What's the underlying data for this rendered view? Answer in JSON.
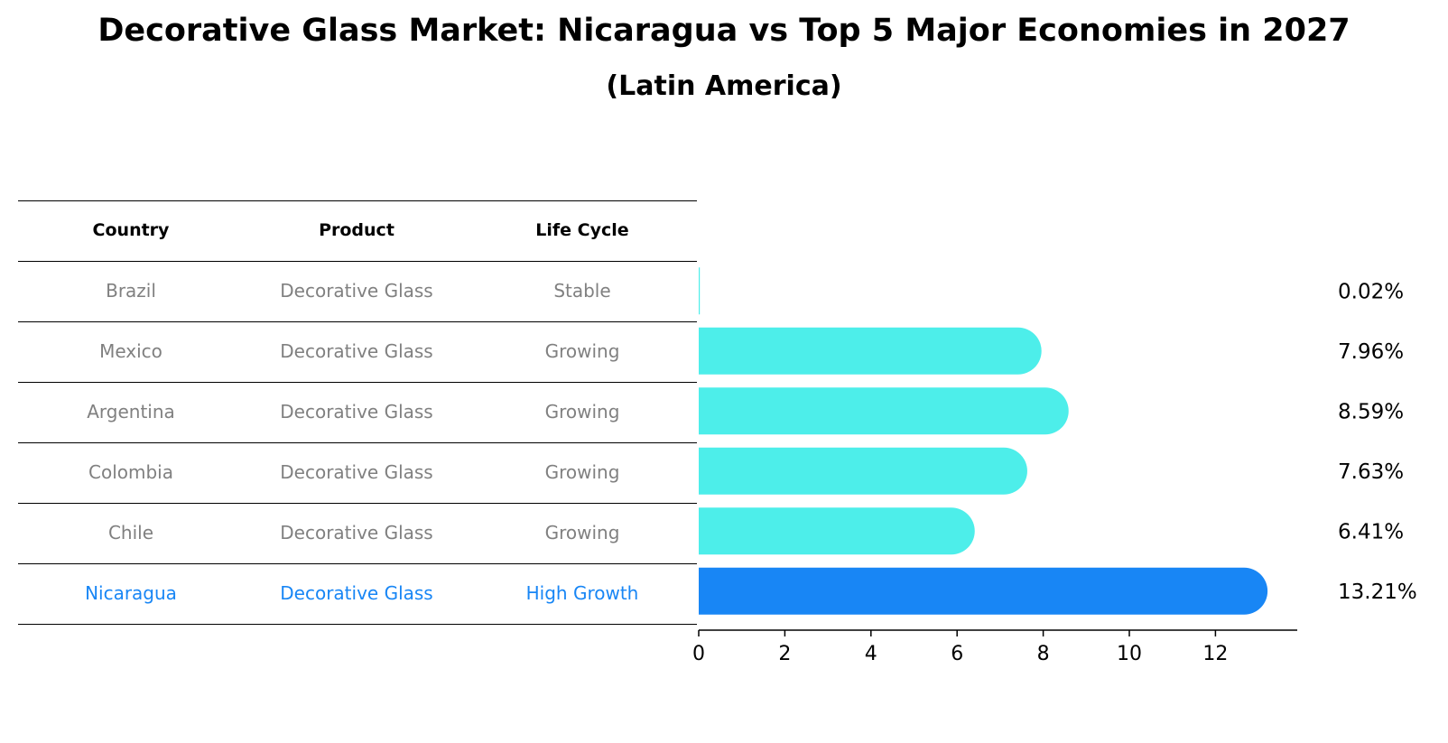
{
  "title": "Decorative Glass Market: Nicaragua vs Top 5 Major Economies in 2027",
  "subtitle": "(Latin America)",
  "table": {
    "headers": [
      "Country",
      "Product",
      "Life Cycle"
    ],
    "rows": [
      {
        "country": "Brazil",
        "product": "Decorative Glass",
        "life_cycle": "Stable"
      },
      {
        "country": "Mexico",
        "product": "Decorative Glass",
        "life_cycle": "Growing"
      },
      {
        "country": "Argentina",
        "product": "Decorative Glass",
        "life_cycle": "Growing"
      },
      {
        "country": "Colombia",
        "product": "Decorative Glass",
        "life_cycle": "Growing"
      },
      {
        "country": "Chile",
        "product": "Decorative Glass",
        "life_cycle": "Growing"
      },
      {
        "country": "Nicaragua",
        "product": "Decorative Glass",
        "life_cycle": "High Growth"
      }
    ]
  },
  "colors": {
    "bar": "#4deeea",
    "highlight": "#1886f5",
    "muted_text": "#808080"
  },
  "chart_data": {
    "type": "bar",
    "orientation": "horizontal",
    "categories": [
      "Brazil",
      "Mexico",
      "Argentina",
      "Colombia",
      "Chile",
      "Nicaragua"
    ],
    "values": [
      0.02,
      7.96,
      8.59,
      7.63,
      6.41,
      13.21
    ],
    "value_labels": [
      "0.02%",
      "7.96%",
      "8.59%",
      "7.63%",
      "6.41%",
      "13.21%"
    ],
    "highlight": "Nicaragua",
    "xlim": [
      0,
      13.9
    ],
    "xticks": [
      0,
      2,
      4,
      6,
      8,
      10,
      12
    ],
    "xlabel": "",
    "ylabel": ""
  }
}
